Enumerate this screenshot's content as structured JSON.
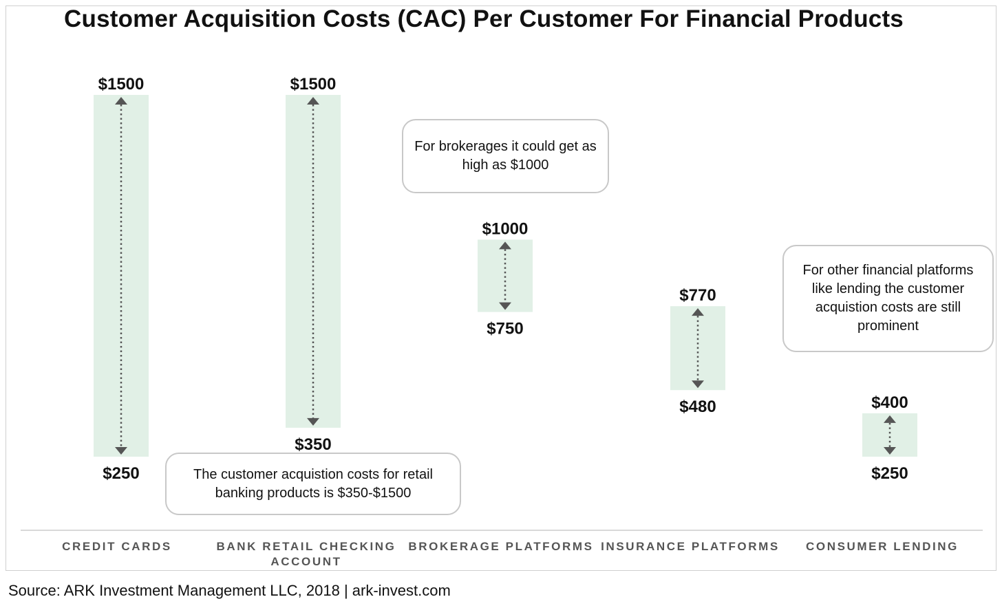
{
  "chart_data": {
    "type": "range_bar",
    "title": "Customer Acquisition Costs (CAC) Per Customer For Financial Products",
    "categories": [
      "CREDIT CARDS",
      "BANK RETAIL CHECKING ACCOUNT",
      "BROKERAGE PLATFORMS",
      "INSURANCE PLATFORMS",
      "CONSUMER LENDING"
    ],
    "series": [
      {
        "low": [
          250,
          350,
          750,
          480,
          250
        ],
        "high": [
          1500,
          1500,
          1000,
          770,
          400
        ]
      }
    ],
    "low_labels": [
      "$250",
      "$350",
      "$750",
      "$480",
      "$250"
    ],
    "high_labels": [
      "$1500",
      "$1500",
      "$1000",
      "$770",
      "$400"
    ],
    "ylim": [
      250,
      1500
    ],
    "grid": false,
    "legend": "none",
    "annotations": [
      "The customer acquistion costs for retail banking products is $350-$1500",
      "For brokerages it could get as high as $1000",
      "For other financial platforms like lending the customer acquistion costs are still prominent"
    ]
  },
  "source": "Source: ARK Investment Management LLC, 2018  |  ark-invest.com",
  "colors": {
    "bar_fill": "#e1f0e6",
    "arrow": "#555555",
    "axis_label": "#555555",
    "text": "#111111",
    "callout_border": "#c8c8c8"
  }
}
